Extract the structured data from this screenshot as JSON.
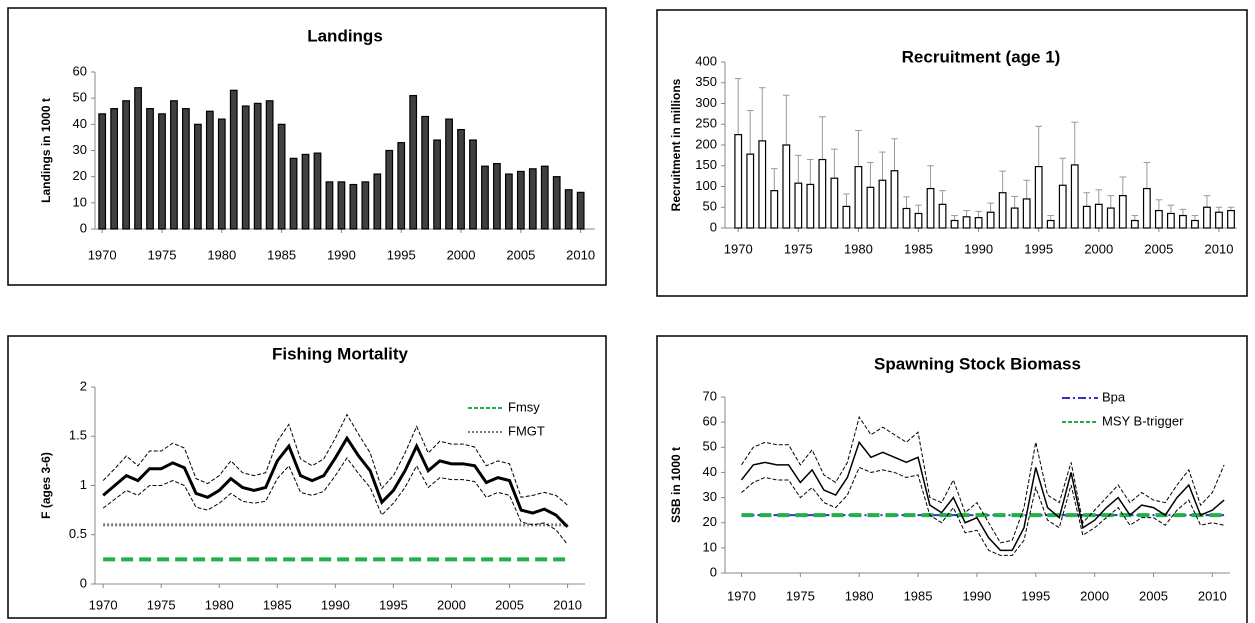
{
  "chart_data": [
    {
      "type": "bar",
      "title": "Landings",
      "y_label": "Landings in 1000 t",
      "x": [
        1970,
        1971,
        1972,
        1973,
        1974,
        1975,
        1976,
        1977,
        1978,
        1979,
        1980,
        1981,
        1982,
        1983,
        1984,
        1985,
        1986,
        1987,
        1988,
        1989,
        1990,
        1991,
        1992,
        1993,
        1994,
        1995,
        1996,
        1997,
        1998,
        1999,
        2000,
        2001,
        2002,
        2003,
        2004,
        2005,
        2006,
        2007,
        2008,
        2009,
        2010
      ],
      "values": [
        44,
        46,
        49,
        54,
        46,
        44,
        49,
        46,
        40,
        45,
        42,
        53,
        47,
        48,
        49,
        40,
        27,
        28.5,
        29,
        18,
        18,
        17,
        18,
        21,
        30,
        33,
        51,
        43,
        34,
        42,
        38,
        34,
        24,
        25,
        21,
        22,
        23,
        24,
        20,
        15,
        14
      ],
      "color": "#404040",
      "xlim": [
        1969.4,
        2011.2
      ],
      "xticks": [
        1970,
        1975,
        1980,
        1985,
        1990,
        1995,
        2000,
        2005,
        2010
      ],
      "ylim": [
        0,
        60
      ],
      "yticks": [
        0,
        10,
        20,
        30,
        40,
        50,
        60
      ]
    },
    {
      "type": "bar",
      "title": "Recruitment (age 1)",
      "y_label": "Recruitment in millions",
      "x": [
        1970,
        1971,
        1972,
        1973,
        1974,
        1975,
        1976,
        1977,
        1978,
        1979,
        1980,
        1981,
        1982,
        1983,
        1984,
        1985,
        1986,
        1987,
        1988,
        1989,
        1990,
        1991,
        1992,
        1993,
        1994,
        1995,
        1996,
        1997,
        1998,
        1999,
        2000,
        2001,
        2002,
        2003,
        2004,
        2005,
        2006,
        2007,
        2008,
        2009,
        2010,
        2011
      ],
      "values": [
        225,
        178,
        210,
        90,
        200,
        108,
        105,
        165,
        120,
        52,
        148,
        98,
        115,
        138,
        47,
        35,
        95,
        57,
        18,
        27,
        25,
        38,
        85,
        48,
        70,
        148,
        18,
        103,
        152,
        52,
        57,
        48,
        78,
        18,
        95,
        42,
        35,
        30,
        18,
        50,
        38,
        42
      ],
      "errors": [
        135,
        105,
        128,
        53,
        120,
        67,
        60,
        103,
        70,
        30,
        87,
        60,
        68,
        77,
        28,
        20,
        55,
        33,
        12,
        15,
        15,
        22,
        52,
        28,
        45,
        97,
        12,
        65,
        103,
        33,
        35,
        30,
        45,
        12,
        63,
        26,
        20,
        15,
        12,
        28,
        12,
        8
      ],
      "color": "#ffffff",
      "error_color": "#999999",
      "xlim": [
        1968.9,
        2011.5
      ],
      "xticks": [
        1970,
        1975,
        1980,
        1985,
        1990,
        1995,
        2000,
        2005,
        2010
      ],
      "ylim": [
        0,
        400
      ],
      "yticks": [
        0,
        50,
        100,
        150,
        200,
        250,
        300,
        350,
        400
      ]
    },
    {
      "type": "line",
      "title": "Fishing Mortality",
      "y_label": "F (ages 3-6)",
      "x": [
        1970,
        1971,
        1972,
        1973,
        1974,
        1975,
        1976,
        1977,
        1978,
        1979,
        1980,
        1981,
        1982,
        1983,
        1984,
        1985,
        1986,
        1987,
        1988,
        1989,
        1990,
        1991,
        1992,
        1993,
        1994,
        1995,
        1996,
        1997,
        1998,
        1999,
        2000,
        2001,
        2002,
        2003,
        2004,
        2005,
        2006,
        2007,
        2008,
        2009,
        2010
      ],
      "series": [
        {
          "color": "#000000",
          "width": 3,
          "values": [
            0.9,
            1.0,
            1.1,
            1.05,
            1.17,
            1.17,
            1.23,
            1.18,
            0.92,
            0.88,
            0.95,
            1.07,
            0.98,
            0.95,
            0.98,
            1.25,
            1.4,
            1.1,
            1.05,
            1.1,
            1.28,
            1.48,
            1.3,
            1.15,
            0.83,
            0.95,
            1.15,
            1.4,
            1.15,
            1.25,
            1.22,
            1.22,
            1.2,
            1.03,
            1.08,
            1.05,
            0.75,
            0.72,
            0.76,
            0.7,
            0.58
          ]
        },
        {
          "color": "#000000",
          "width": 1,
          "dash": "4 2",
          "values": [
            1.05,
            1.17,
            1.3,
            1.2,
            1.35,
            1.35,
            1.43,
            1.38,
            1.07,
            1.02,
            1.1,
            1.25,
            1.13,
            1.1,
            1.13,
            1.45,
            1.62,
            1.27,
            1.2,
            1.27,
            1.48,
            1.72,
            1.52,
            1.33,
            0.97,
            1.1,
            1.33,
            1.6,
            1.33,
            1.45,
            1.42,
            1.42,
            1.39,
            1.2,
            1.25,
            1.22,
            0.88,
            0.9,
            0.93,
            0.9,
            0.8
          ]
        },
        {
          "color": "#000000",
          "width": 1,
          "dash": "4 2",
          "values": [
            0.77,
            0.86,
            0.95,
            0.9,
            1.0,
            1.0,
            1.05,
            1.0,
            0.78,
            0.75,
            0.82,
            0.92,
            0.84,
            0.82,
            0.84,
            1.07,
            1.2,
            0.93,
            0.9,
            0.94,
            1.1,
            1.28,
            1.12,
            0.98,
            0.7,
            0.82,
            0.98,
            1.2,
            0.98,
            1.08,
            1.06,
            1.06,
            1.04,
            0.88,
            0.93,
            0.9,
            0.63,
            0.6,
            0.62,
            0.55,
            0.4
          ]
        }
      ],
      "reference_lines": [
        {
          "name": "Fmsy",
          "value": 0.25,
          "color": "#22b04b",
          "width": 4,
          "dash": "12 6"
        },
        {
          "name": "FMGT",
          "value": 0.6,
          "color": "#777777",
          "width": 3,
          "dash": "2 2"
        }
      ],
      "xlim": [
        1969.3,
        2011.5
      ],
      "xticks": [
        1970,
        1975,
        1980,
        1985,
        1990,
        1995,
        2000,
        2005,
        2010
      ],
      "ylim": [
        0,
        2
      ],
      "yticks": [
        0,
        0.5,
        1,
        1.5,
        2
      ]
    },
    {
      "type": "line",
      "title": "Spawning Stock Biomass",
      "y_label": "SSB in 1000 t",
      "x": [
        1970,
        1971,
        1972,
        1973,
        1974,
        1975,
        1976,
        1977,
        1978,
        1979,
        1980,
        1981,
        1982,
        1983,
        1984,
        1985,
        1986,
        1987,
        1988,
        1989,
        1990,
        1991,
        1992,
        1993,
        1994,
        1995,
        1996,
        1997,
        1998,
        1999,
        2000,
        2001,
        2002,
        2003,
        2004,
        2005,
        2006,
        2007,
        2008,
        2009,
        2010,
        2011
      ],
      "series": [
        {
          "color": "#000000",
          "width": 1.5,
          "values": [
            37,
            43,
            44,
            43,
            43,
            36,
            41,
            33,
            31,
            38,
            52,
            46,
            48,
            46,
            44,
            46,
            27,
            24,
            30,
            20,
            22,
            14,
            9,
            9,
            18,
            42,
            26,
            22,
            40,
            18,
            21,
            26,
            30,
            23,
            27,
            26,
            23,
            30,
            35,
            23,
            25,
            29
          ]
        },
        {
          "color": "#000000",
          "width": 1,
          "dash": "4 2",
          "values": [
            43,
            50,
            52,
            51,
            51,
            43,
            49,
            39,
            36,
            44,
            62,
            55,
            58,
            55,
            52,
            56,
            30,
            28,
            37,
            24,
            28,
            20,
            12,
            13,
            26,
            52,
            31,
            28,
            44,
            20,
            25,
            30,
            35,
            28,
            32,
            29,
            28,
            35,
            41,
            27,
            32,
            43
          ]
        },
        {
          "color": "#000000",
          "width": 1,
          "dash": "4 2",
          "values": [
            32,
            36,
            38,
            37,
            37,
            30,
            34,
            28,
            26,
            31,
            42,
            40,
            41,
            40,
            38,
            39,
            23,
            20,
            26,
            16,
            17,
            9,
            7,
            7,
            13,
            34,
            21,
            18,
            35,
            15,
            18,
            22,
            26,
            19,
            22,
            22,
            19,
            25,
            29,
            19,
            20,
            19
          ]
        }
      ],
      "reference_lines": [
        {
          "name": "Bpa",
          "value": 23,
          "color": "#3333cc",
          "width": 2,
          "dash": "8 3 2 3"
        },
        {
          "name": "MSY B-trigger",
          "value": 23,
          "color": "#22b04b",
          "width": 4,
          "dash": "12 6"
        }
      ],
      "xlim": [
        1968.6,
        2011.5
      ],
      "xticks": [
        1970,
        1975,
        1980,
        1985,
        1990,
        1995,
        2000,
        2005,
        2010
      ],
      "ylim": [
        0,
        70
      ],
      "yticks": [
        0,
        10,
        20,
        30,
        40,
        50,
        60,
        70
      ]
    }
  ]
}
